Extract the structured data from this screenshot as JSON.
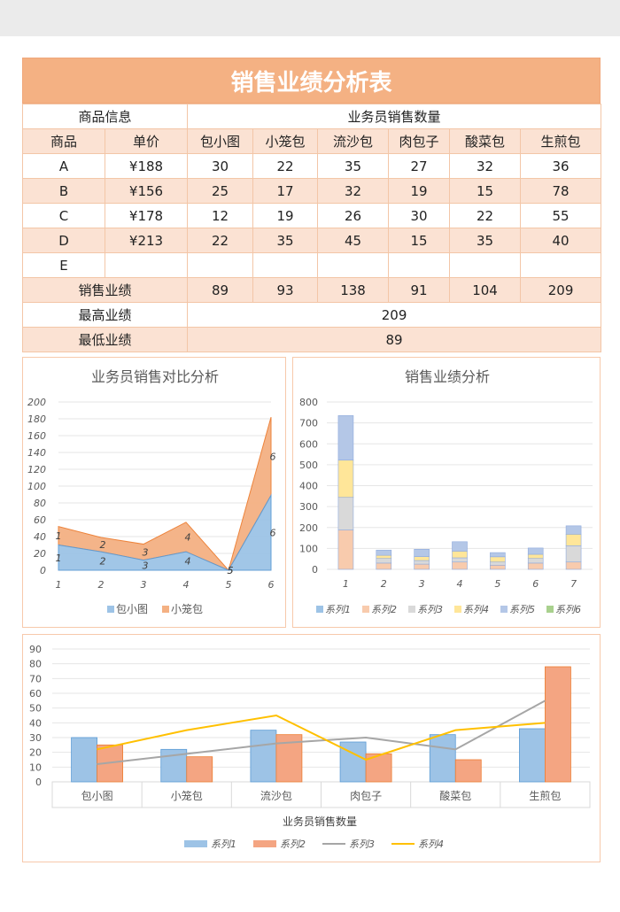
{
  "title": "销售业绩分析表",
  "header": {
    "product_info": "商品信息",
    "sales_qty": "业务员销售数量",
    "col_product": "商品",
    "col_price": "单价",
    "salespeople": [
      "包小图",
      "小笼包",
      "流沙包",
      "肉包子",
      "酸菜包",
      "生煎包"
    ]
  },
  "rows": [
    {
      "product": "A",
      "price": "¥188",
      "values": [
        "30",
        "22",
        "35",
        "27",
        "32",
        "36"
      ]
    },
    {
      "product": "B",
      "price": "¥156",
      "values": [
        "25",
        "17",
        "32",
        "19",
        "15",
        "78"
      ]
    },
    {
      "product": "C",
      "price": "¥178",
      "values": [
        "12",
        "19",
        "26",
        "30",
        "22",
        "55"
      ]
    },
    {
      "product": "D",
      "price": "¥213",
      "values": [
        "22",
        "35",
        "45",
        "15",
        "35",
        "40"
      ]
    },
    {
      "product": "E",
      "price": "",
      "values": [
        "",
        "",
        "",
        "",
        "",
        ""
      ]
    }
  ],
  "summary": {
    "total_label": "销售业绩",
    "totals": [
      "89",
      "93",
      "138",
      "91",
      "104",
      "209"
    ],
    "max_label": "最高业绩",
    "max_value": "209",
    "min_label": "最低业绩",
    "min_value": "89"
  },
  "chart_data": [
    {
      "type": "area",
      "title": "业务员销售对比分析",
      "x": [
        1,
        2,
        3,
        4,
        5,
        6
      ],
      "ylim": [
        0,
        200
      ],
      "yticks": [
        0,
        20,
        40,
        60,
        80,
        100,
        120,
        140,
        160,
        180,
        200
      ],
      "series": [
        {
          "name": "包小图",
          "values": [
            30,
            22,
            12,
            22,
            0,
            89
          ],
          "color": "#9dc3e6"
        },
        {
          "name": "小笼包",
          "values": [
            22,
            17,
            19,
            35,
            0,
            93
          ],
          "color": "#f4b183"
        }
      ],
      "data_labels": [
        "1",
        "2",
        "3",
        "4",
        "5",
        "6"
      ],
      "legend": "bottom"
    },
    {
      "type": "bar",
      "stacked": true,
      "title": "销售业绩分析",
      "categories": [
        "1",
        "2",
        "3",
        "4",
        "5",
        "6",
        "7"
      ],
      "ylim": [
        0,
        800
      ],
      "yticks": [
        0,
        100,
        200,
        300,
        400,
        500,
        600,
        700,
        800
      ],
      "series": [
        {
          "name": "系列1",
          "values": [
            0,
            0,
            0,
            0,
            0,
            0,
            0
          ],
          "color": "#9dc3e6"
        },
        {
          "name": "系列2",
          "values": [
            188,
            30,
            25,
            35,
            20,
            30,
            35
          ],
          "color": "#f8cbad"
        },
        {
          "name": "系列3",
          "values": [
            156,
            22,
            17,
            20,
            15,
            22,
            78
          ],
          "color": "#d9d9d9"
        },
        {
          "name": "系列4",
          "values": [
            178,
            15,
            19,
            32,
            25,
            20,
            55
          ],
          "color": "#ffe699"
        },
        {
          "name": "系列5",
          "values": [
            213,
            25,
            35,
            45,
            20,
            30,
            40
          ],
          "color": "#b4c7e7"
        },
        {
          "name": "系列6",
          "values": [
            0,
            0,
            0,
            0,
            0,
            0,
            0
          ],
          "color": "#a9d18e"
        }
      ],
      "legend": "bottom"
    },
    {
      "type": "bar",
      "xlabel": "业务员销售数量",
      "categories": [
        "包小图",
        "小笼包",
        "流沙包",
        "肉包子",
        "酸菜包",
        "生煎包"
      ],
      "ylim": [
        0,
        90
      ],
      "yticks": [
        0,
        10,
        20,
        30,
        40,
        50,
        60,
        70,
        80,
        90
      ],
      "series": [
        {
          "name": "系列1",
          "kind": "bar",
          "values": [
            30,
            22,
            35,
            27,
            32,
            36
          ],
          "color": "#9dc3e6"
        },
        {
          "name": "系列2",
          "kind": "bar",
          "values": [
            25,
            17,
            32,
            19,
            15,
            78
          ],
          "color": "#f4a582"
        },
        {
          "name": "系列3",
          "kind": "line",
          "values": [
            12,
            19,
            26,
            30,
            22,
            55
          ],
          "color": "#a6a6a6"
        },
        {
          "name": "系列4",
          "kind": "line",
          "values": [
            22,
            35,
            45,
            15,
            35,
            40
          ],
          "color": "#ffc000"
        }
      ],
      "legend": "bottom"
    }
  ]
}
